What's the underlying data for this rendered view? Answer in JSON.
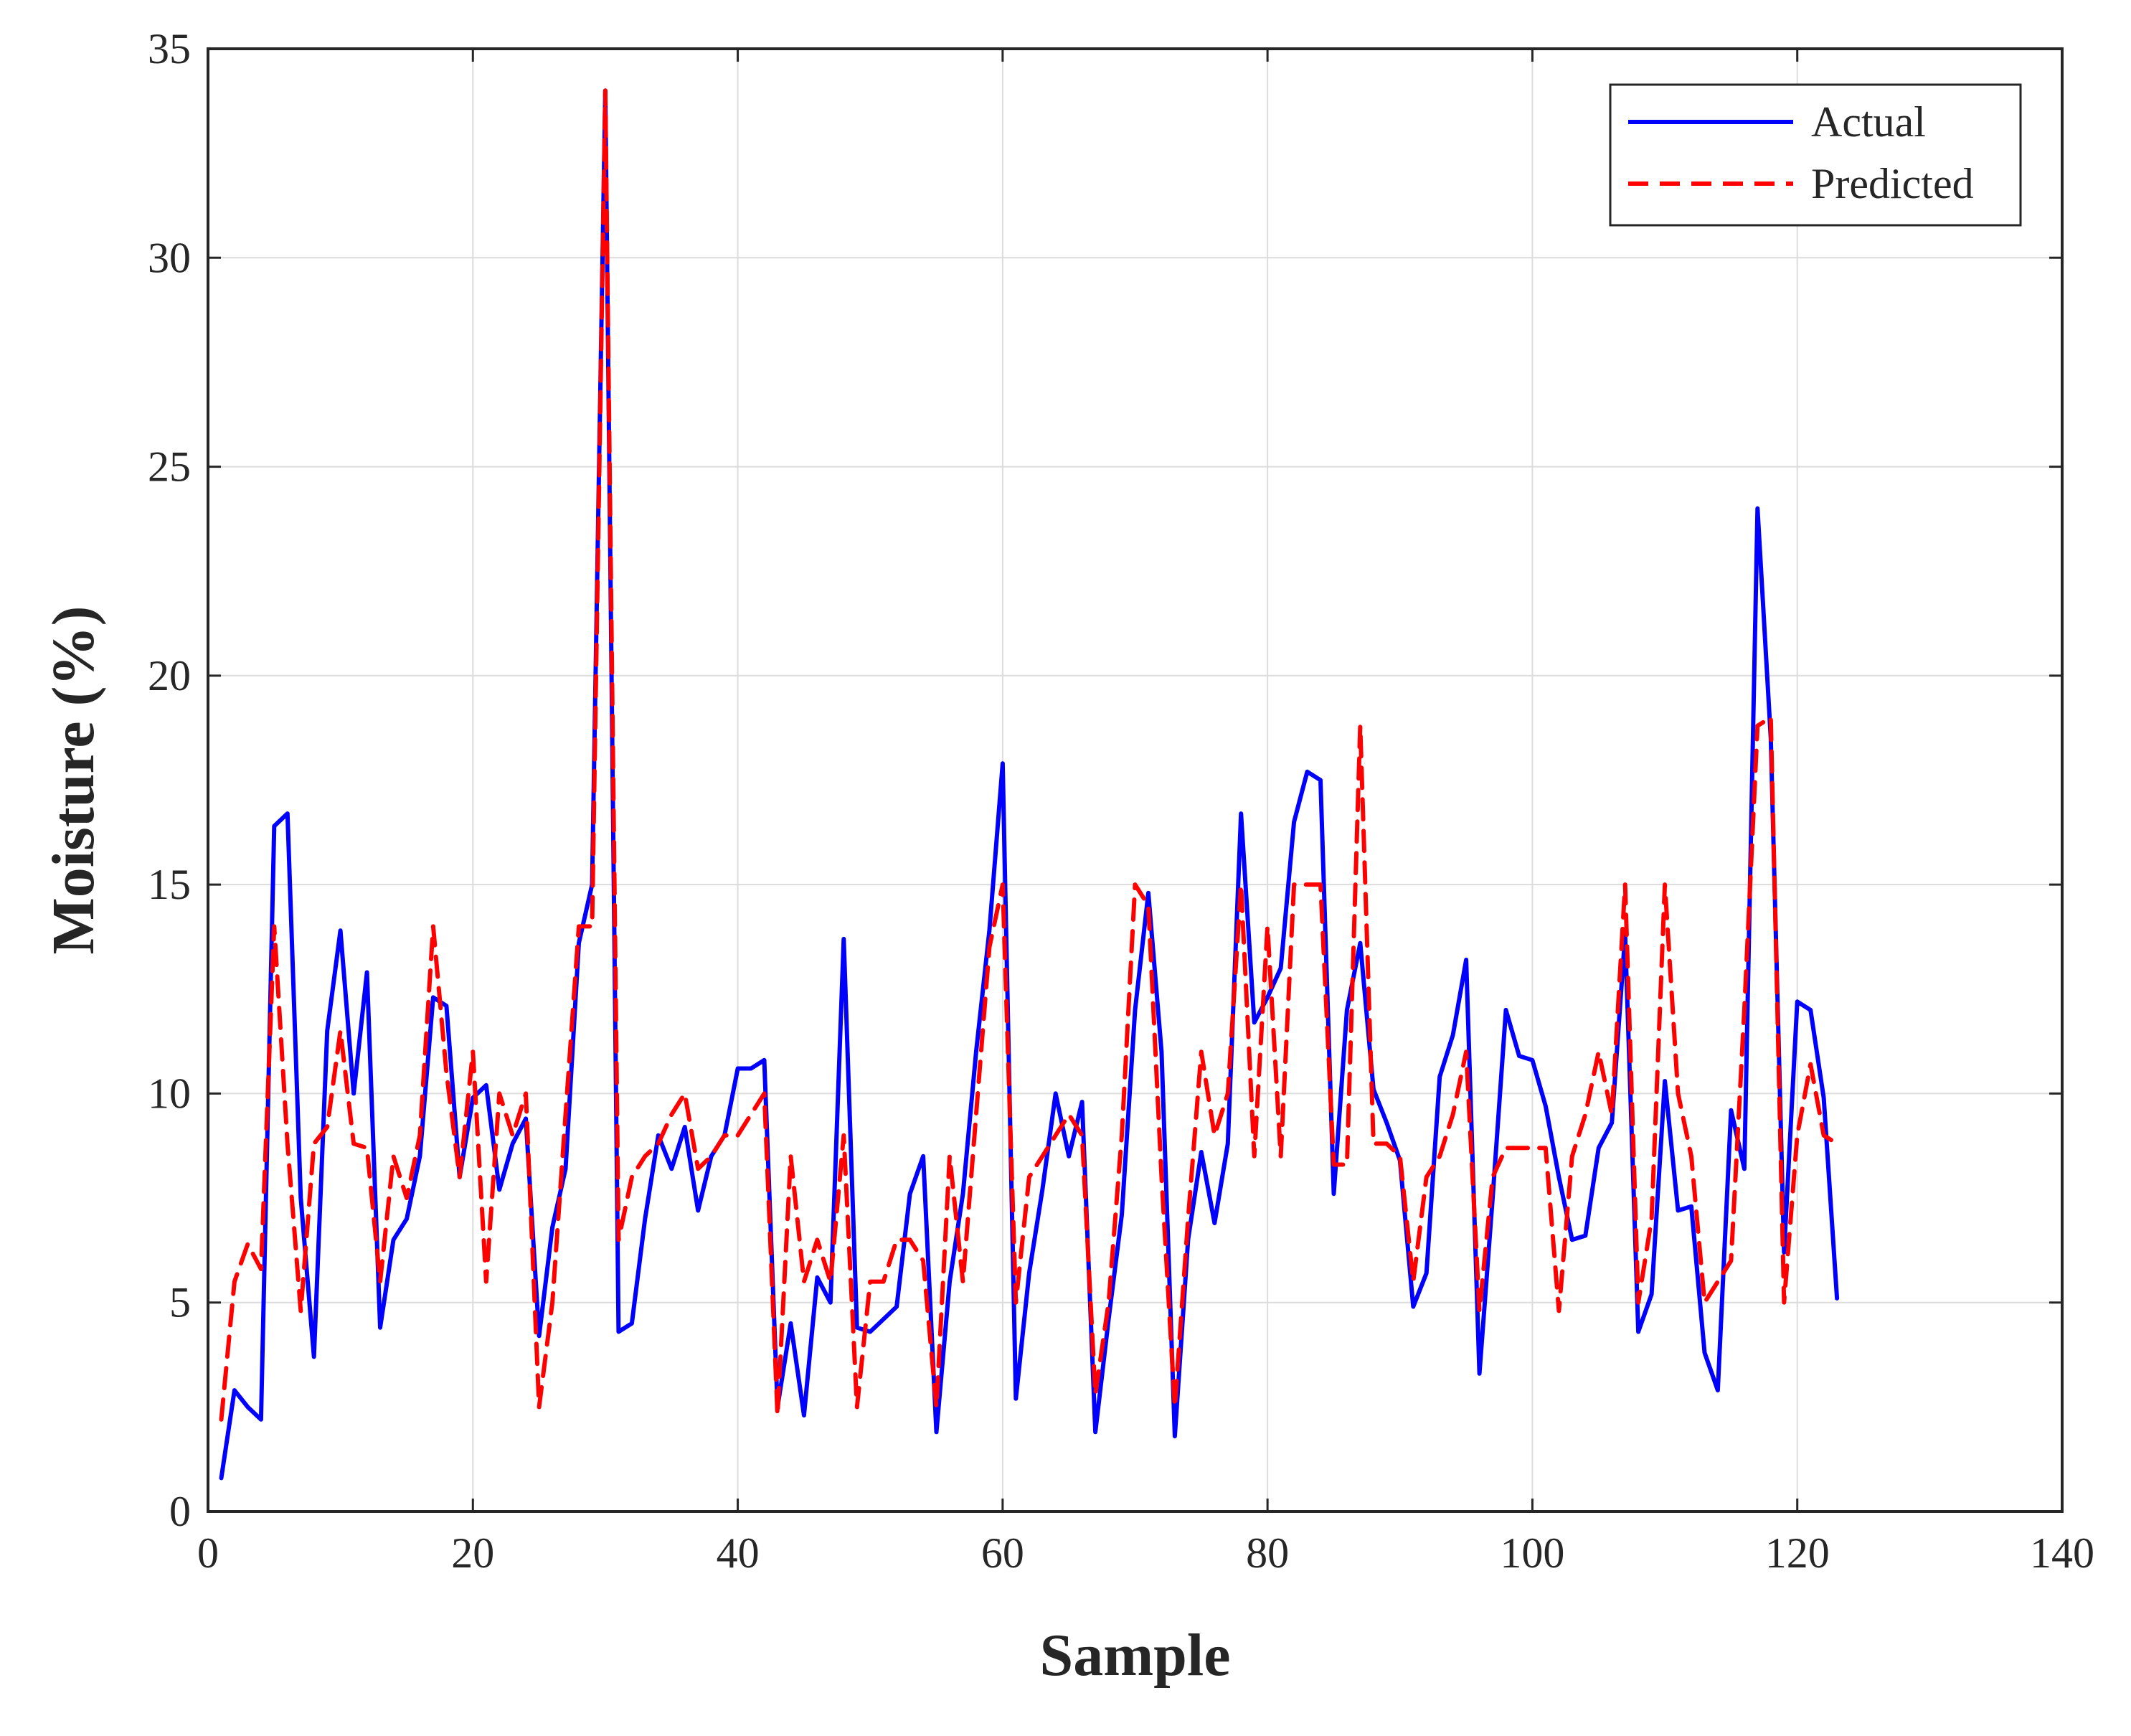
{
  "chart_data": {
    "type": "line",
    "title": "",
    "xlabel": "Sample",
    "ylabel": "Moisture (%)",
    "xlim": [
      0,
      140
    ],
    "ylim": [
      0,
      35
    ],
    "xticks": [
      0,
      20,
      40,
      60,
      80,
      100,
      120,
      140
    ],
    "yticks": [
      0,
      5,
      10,
      15,
      20,
      25,
      30,
      35
    ],
    "xtick_labels": [
      "0",
      "20",
      "40",
      "60",
      "80",
      "100",
      "120",
      "140"
    ],
    "ytick_labels": [
      "0",
      "5",
      "10",
      "15",
      "20",
      "25",
      "30",
      "35"
    ],
    "grid": true,
    "legend": {
      "position": "top-right",
      "entries": [
        "Actual",
        "Predicted"
      ]
    },
    "series": [
      {
        "name": "Actual",
        "color": "#0000ff",
        "style": "solid",
        "x": [
          1,
          2,
          3,
          4,
          5,
          6,
          7,
          8,
          9,
          10,
          11,
          12,
          13,
          14,
          15,
          16,
          17,
          18,
          19,
          20,
          21,
          22,
          23,
          24,
          25,
          26,
          27,
          28,
          29,
          30,
          31,
          32,
          33,
          34,
          35,
          36,
          37,
          38,
          39,
          40,
          41,
          42,
          43,
          44,
          45,
          46,
          47,
          48,
          49,
          50,
          51,
          52,
          53,
          54,
          55,
          56,
          57,
          58,
          59,
          60,
          61,
          62,
          63,
          64,
          65,
          66,
          67,
          68,
          69,
          70,
          71,
          72,
          73,
          74,
          75,
          76,
          77,
          78,
          79,
          80,
          81,
          82,
          83,
          84,
          85,
          86,
          87,
          88,
          89,
          90,
          91,
          92,
          93,
          94,
          95,
          96,
          97,
          98,
          99,
          100,
          101,
          102,
          103,
          104,
          105,
          106,
          107,
          108,
          109,
          110,
          111,
          112,
          113,
          114,
          115,
          116,
          117,
          118,
          119,
          120,
          121,
          122,
          123
        ],
        "values": [
          0.8,
          2.9,
          2.5,
          2.2,
          16.4,
          16.7,
          7.5,
          3.7,
          11.5,
          13.9,
          10.0,
          12.9,
          4.4,
          6.5,
          7.0,
          8.5,
          12.3,
          12.1,
          8.0,
          9.9,
          10.2,
          7.7,
          8.8,
          9.4,
          4.2,
          6.8,
          8.2,
          13.6,
          15.0,
          34.0,
          4.3,
          4.5,
          7.0,
          9.0,
          8.2,
          9.2,
          7.2,
          8.5,
          9.0,
          10.6,
          10.6,
          10.8,
          2.5,
          4.5,
          2.3,
          5.6,
          5.0,
          13.7,
          4.4,
          4.3,
          4.6,
          4.9,
          7.6,
          8.5,
          1.9,
          5.5,
          7.6,
          11.0,
          13.9,
          17.9,
          2.7,
          5.7,
          7.7,
          10.0,
          8.5,
          9.8,
          1.9,
          4.6,
          7.1,
          12.0,
          14.8,
          11.0,
          1.8,
          6.5,
          8.6,
          6.9,
          8.8,
          16.7,
          11.7,
          12.3,
          13.0,
          16.5,
          17.7,
          17.5,
          7.6,
          12.0,
          13.6,
          10.1,
          9.3,
          8.4,
          4.9,
          5.7,
          10.4,
          11.4,
          13.2,
          3.3,
          7.5,
          12.0,
          10.9,
          10.8,
          9.7,
          8.0,
          6.5,
          6.6,
          8.7,
          9.3,
          13.8,
          4.3,
          5.2,
          10.3,
          7.2,
          7.3,
          3.8,
          2.9,
          9.6,
          8.2,
          24.0,
          18.5,
          6.2,
          12.2,
          12.0,
          9.9,
          5.1
        ]
      },
      {
        "name": "Predicted",
        "color": "#ff0000",
        "style": "dashed",
        "x": [
          1,
          2,
          3,
          4,
          5,
          6,
          7,
          8,
          9,
          10,
          11,
          12,
          13,
          14,
          15,
          16,
          17,
          18,
          19,
          20,
          21,
          22,
          23,
          24,
          25,
          26,
          27,
          28,
          29,
          30,
          31,
          32,
          33,
          34,
          35,
          36,
          37,
          38,
          39,
          40,
          41,
          42,
          43,
          44,
          45,
          46,
          47,
          48,
          49,
          50,
          51,
          52,
          53,
          54,
          55,
          56,
          57,
          58,
          59,
          60,
          61,
          62,
          63,
          64,
          65,
          66,
          67,
          68,
          69,
          70,
          71,
          72,
          73,
          74,
          75,
          76,
          77,
          78,
          79,
          80,
          81,
          82,
          83,
          84,
          85,
          86,
          87,
          88,
          89,
          90,
          91,
          92,
          93,
          94,
          95,
          96,
          97,
          98,
          99,
          100,
          101,
          102,
          103,
          104,
          105,
          106,
          107,
          108,
          109,
          110,
          111,
          112,
          113,
          114,
          115,
          116,
          117,
          118,
          119,
          120,
          121,
          122,
          123
        ],
        "values": [
          2.2,
          5.5,
          6.4,
          5.8,
          14.0,
          8.8,
          4.8,
          8.8,
          9.2,
          11.5,
          8.8,
          8.7,
          5.5,
          8.5,
          7.5,
          9.0,
          14.0,
          10.5,
          8.0,
          11.0,
          5.5,
          10.0,
          9.0,
          10.0,
          2.5,
          5.0,
          9.5,
          14.0,
          14.0,
          34.0,
          6.5,
          8.0,
          8.5,
          8.8,
          9.5,
          10.0,
          8.2,
          8.5,
          9.0,
          9.0,
          9.5,
          10.0,
          2.3,
          8.5,
          5.5,
          6.5,
          5.5,
          9.0,
          2.5,
          5.5,
          5.5,
          6.5,
          6.5,
          6.0,
          2.5,
          8.5,
          5.5,
          9.5,
          13.5,
          15.0,
          5.0,
          8.0,
          8.5,
          9.0,
          9.5,
          9.0,
          2.8,
          5.0,
          9.0,
          15.0,
          14.5,
          8.0,
          2.5,
          7.0,
          11.0,
          9.0,
          10.0,
          15.0,
          8.5,
          14.0,
          8.5,
          15.0,
          15.0,
          15.0,
          8.3,
          8.3,
          18.8,
          8.8,
          8.8,
          8.5,
          5.5,
          8.0,
          8.5,
          9.5,
          11.0,
          4.8,
          8.0,
          8.7,
          8.7,
          8.7,
          8.7,
          4.8,
          8.5,
          9.5,
          11.0,
          9.5,
          15.0,
          5.0,
          7.0,
          15.0,
          10.0,
          8.5,
          5.0,
          5.5,
          6.0,
          12.0,
          18.8,
          19.0,
          5.0,
          9.0,
          10.7,
          9.0,
          8.8
        ]
      }
    ]
  }
}
